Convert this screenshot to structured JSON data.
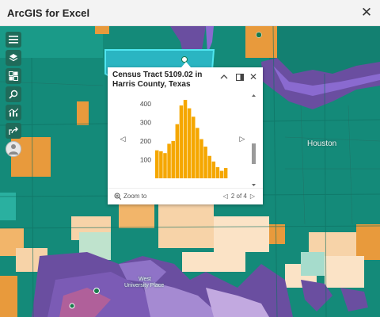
{
  "window": {
    "title": "ArcGIS for Excel"
  },
  "map": {
    "labels": {
      "city": "Houston",
      "neighborhood_line1": "West",
      "neighborhood_line2": "University Place"
    }
  },
  "toolbar": {
    "items": [
      {
        "name": "menu-icon"
      },
      {
        "name": "layers-icon"
      },
      {
        "name": "basemap-gallery-icon"
      },
      {
        "name": "search-icon"
      },
      {
        "name": "chart-icon"
      },
      {
        "name": "share-icon"
      }
    ]
  },
  "popup": {
    "title": "Census Tract 5109.02 in Harris County, Texas",
    "zoom_to_label": "Zoom to",
    "pager_text": "2 of 4"
  },
  "chart_data": {
    "type": "bar",
    "values": [
      150,
      145,
      135,
      185,
      200,
      290,
      390,
      420,
      375,
      330,
      270,
      210,
      170,
      120,
      90,
      60,
      40,
      55
    ],
    "ylim": [
      0,
      450
    ],
    "yticks": [
      100,
      200,
      300,
      400
    ],
    "grid": false,
    "color": "#f5a700"
  },
  "colors": {
    "teal": "#148a79",
    "orange": "#e89a3c",
    "purple": "#6a4ea0",
    "light_peach": "#f7d3a8"
  }
}
